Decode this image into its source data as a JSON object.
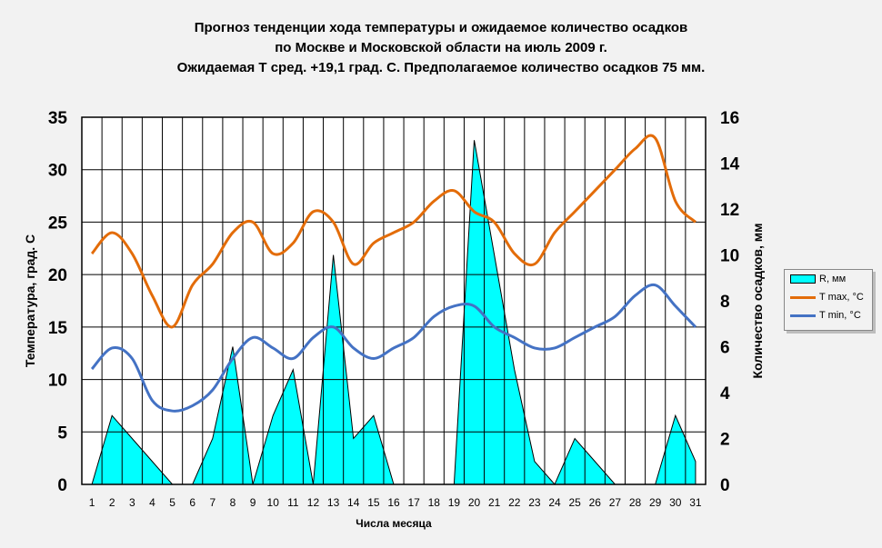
{
  "title": {
    "line1": "Прогноз тенденции хода температуры и ожидаемое количество осадков",
    "line2": "по Москве и Московской области на июль 2009 г.",
    "line3": "Ожидаемая Т сред. +19,1 град. С. Предполагаемое количество осадков 75 мм."
  },
  "colors": {
    "precip_fill": "#00ffff",
    "tmax": "#e36c09",
    "tmin": "#4472c4",
    "grid": "#000000",
    "plot_bg": "#ffffff"
  },
  "chart_data": {
    "type": "line",
    "x": [
      1,
      2,
      3,
      4,
      5,
      6,
      7,
      8,
      9,
      10,
      11,
      12,
      13,
      14,
      15,
      16,
      17,
      18,
      19,
      20,
      21,
      22,
      23,
      24,
      25,
      26,
      27,
      28,
      29,
      30,
      31
    ],
    "xlabel": "Числа месяца",
    "ylabel": "Температура, град. С",
    "ylabel_right": "Количество осадков, мм",
    "ylim": [
      0,
      35
    ],
    "yticks": [
      0,
      5,
      10,
      15,
      20,
      25,
      30,
      35
    ],
    "ylim_right": [
      0,
      16
    ],
    "yticks_right": [
      0,
      2,
      4,
      6,
      8,
      10,
      12,
      14,
      16
    ],
    "grid": true,
    "legend_position": "right",
    "series": [
      {
        "name": "R, мм",
        "type": "area",
        "axis": "right",
        "values": [
          0,
          3,
          2,
          1,
          0,
          0,
          2,
          6,
          0,
          3,
          5,
          0,
          10,
          2,
          3,
          0,
          0,
          0,
          0,
          15,
          10,
          5,
          1,
          0,
          2,
          1,
          0,
          0,
          0,
          3,
          1
        ]
      },
      {
        "name": "T max, °С",
        "type": "line",
        "axis": "left",
        "values": [
          22,
          24,
          22,
          18,
          15,
          19,
          21,
          24,
          25,
          22,
          23,
          26,
          25,
          21,
          23,
          24,
          25,
          27,
          28,
          26,
          25,
          22,
          21,
          24,
          26,
          28,
          30,
          32,
          33,
          27,
          25
        ]
      },
      {
        "name": "T min, °С",
        "type": "line",
        "axis": "left",
        "values": [
          11,
          13,
          12,
          8,
          7,
          7.5,
          9,
          12,
          14,
          13,
          12,
          14,
          15,
          13,
          12,
          13,
          14,
          16,
          17,
          17,
          15,
          14,
          13,
          13,
          14,
          15,
          16,
          18,
          19,
          17,
          15
        ]
      }
    ]
  }
}
